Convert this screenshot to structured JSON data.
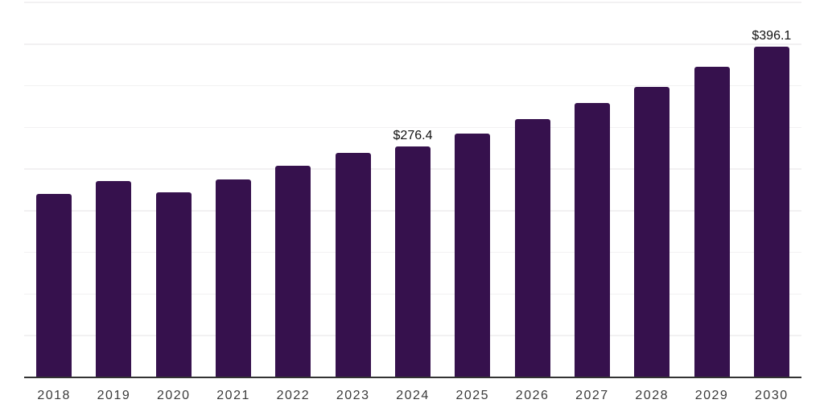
{
  "chart_data": {
    "type": "bar",
    "title": "",
    "xlabel": "",
    "ylabel": "",
    "categories": [
      "2018",
      "2019",
      "2020",
      "2021",
      "2022",
      "2023",
      "2024",
      "2025",
      "2026",
      "2027",
      "2028",
      "2029",
      "2030"
    ],
    "values": [
      219.5,
      234.5,
      221.5,
      237.0,
      253.0,
      268.5,
      276.4,
      292.0,
      309.5,
      328.5,
      348.0,
      372.0,
      396.1
    ],
    "value_labels": [
      "",
      "",
      "",
      "",
      "",
      "",
      "$276.4",
      "",
      "",
      "",
      "",
      "",
      "$396.1"
    ],
    "ylim": [
      0,
      450
    ],
    "grid_step": 50,
    "grid": "on",
    "legend": "none",
    "y_tick_labels_shown": false
  },
  "style": {
    "bar_color": "#36114d",
    "grid_color": "#f2f1f2",
    "axis_color": "#333333",
    "tick_label_color": "#3a3a3a",
    "data_label_color": "#111111",
    "background_color": "#ffffff"
  }
}
